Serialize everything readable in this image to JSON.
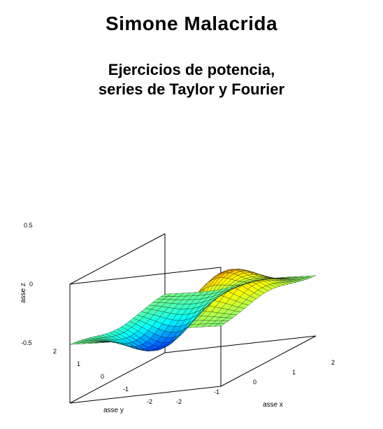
{
  "author": "Simone Malacrida",
  "title": "Ejercicios de potencia,\nseries de Taylor y Fourier",
  "author_fontsize": 28,
  "title_fontsize": 22,
  "plot": {
    "type": "surface3d",
    "xlabel": "asse x",
    "ylabel": "asse y",
    "zlabel": "asse z",
    "label_fontsize": 10,
    "tick_fontsize": 9,
    "xlim": [
      -2,
      2
    ],
    "ylim": [
      -2,
      2
    ],
    "zlim": [
      -0.5,
      0.5
    ],
    "xticks": [
      -2,
      -1,
      0,
      1,
      2
    ],
    "yticks": [
      -2,
      -1,
      0,
      1,
      2
    ],
    "zticks": [
      -0.5,
      0,
      0.5
    ],
    "colormap": {
      "name": "jet",
      "stops": [
        {
          "t": 0.0,
          "color": "#00008f"
        },
        {
          "t": 0.15,
          "color": "#0000ff"
        },
        {
          "t": 0.35,
          "color": "#00ffff"
        },
        {
          "t": 0.5,
          "color": "#7fff7f"
        },
        {
          "t": 0.65,
          "color": "#ffff00"
        },
        {
          "t": 0.85,
          "color": "#ff7f00"
        },
        {
          "t": 1.0,
          "color": "#8f0000"
        }
      ]
    },
    "mesh_color": "#000000",
    "mesh_linewidth": 0.3,
    "axis_color": "#000000",
    "background_color": "#ffffff",
    "view": {
      "azimuth": -37.5,
      "elevation": 30
    },
    "grid_nx": 24,
    "grid_ny": 24,
    "function_hint": "z ≈ 0.5 * x * exp(-(x^2 + y^2)/2) (peak≈0.5 near x≈1, y≈0; trough≈-0.5 near x≈-1, y≈0; flat at edges)"
  }
}
